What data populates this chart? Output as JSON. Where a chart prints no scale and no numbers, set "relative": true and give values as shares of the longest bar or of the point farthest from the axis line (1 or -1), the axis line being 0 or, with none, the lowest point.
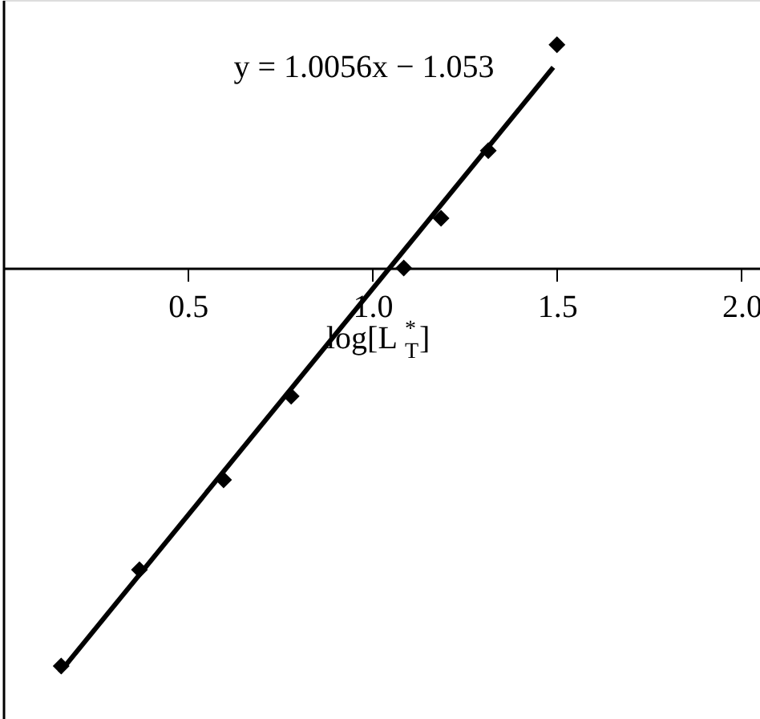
{
  "chart_data": {
    "type": "scatter",
    "xlabel": "log[L$^{*}$$_{T}$]",
    "annotations": [
      "y = 1.0056x − 1.053"
    ],
    "relative": true,
    "xlim": [
      0,
      2.05
    ],
    "xticks": [
      {
        "value": 0.5,
        "label": "0.5"
      },
      {
        "value": 1.0,
        "label": "1.0"
      },
      {
        "value": 1.5,
        "label": "1.5"
      },
      {
        "value": 2.0,
        "label": "2.0"
      }
    ],
    "tick_labels": "x",
    "grid": false,
    "marker": "diamond",
    "series": [
      {
        "color": "#000000",
        "x": [
          0.157,
          0.369,
          0.597,
          0.78,
          1.085,
          1.186,
          1.314,
          1.5
        ],
        "values": [
          -0.984,
          -0.746,
          -0.524,
          -0.317,
          0,
          0.123,
          0.29,
          0.552
        ]
      },
      {
        "type": "line",
        "color": "#000000",
        "marker": "none",
        "x": [
          0.153,
          1.49
        ],
        "values": [
          -1,
          0.496
        ]
      }
    ]
  }
}
